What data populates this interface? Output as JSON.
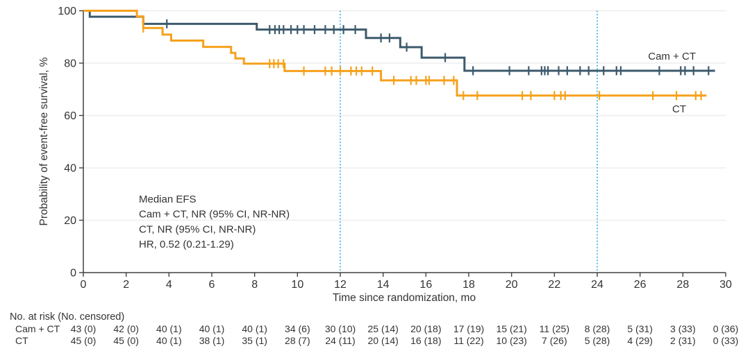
{
  "colors": {
    "cam_ct": "#3c5a6c",
    "ct": "#f5a11c",
    "reference_line": "#4ab7e6",
    "gridline": "#ebebeb",
    "axis": "#404040",
    "text": "#333333"
  },
  "chart_data": {
    "type": "line",
    "subtype": "kaplan-meier-step",
    "title": "",
    "xlabel": "Time since randomization, mo",
    "ylabel": "Probability of event-free survival, %",
    "xlim": [
      0,
      30
    ],
    "ylim": [
      0,
      100
    ],
    "xticks": [
      0,
      2,
      4,
      6,
      8,
      10,
      12,
      14,
      16,
      18,
      20,
      22,
      24,
      26,
      28,
      30
    ],
    "yticks": [
      0,
      20,
      40,
      60,
      80,
      100
    ],
    "grid": "horizontal",
    "legend_position": "inline-right",
    "reference_lines_x": [
      12,
      24
    ],
    "series": [
      {
        "name": "Cam + CT",
        "color": "#3c5a6c",
        "steps": [
          [
            0,
            100
          ],
          [
            0.3,
            97.7
          ],
          [
            2.8,
            95.0
          ],
          [
            8.1,
            92.8
          ],
          [
            13.2,
            89.6
          ],
          [
            14.8,
            86.1
          ],
          [
            15.8,
            82.1
          ],
          [
            17.8,
            77.1
          ]
        ],
        "end_x": 29.5,
        "censor_marks": [
          [
            3.9,
            95.0
          ],
          [
            8.7,
            92.8
          ],
          [
            8.95,
            92.8
          ],
          [
            9.15,
            92.8
          ],
          [
            9.35,
            92.8
          ],
          [
            9.7,
            92.8
          ],
          [
            10.0,
            92.8
          ],
          [
            10.3,
            92.8
          ],
          [
            10.8,
            92.8
          ],
          [
            11.3,
            92.8
          ],
          [
            11.7,
            92.8
          ],
          [
            12.15,
            92.8
          ],
          [
            12.7,
            92.8
          ],
          [
            13.9,
            89.6
          ],
          [
            14.3,
            89.6
          ],
          [
            15.1,
            86.1
          ],
          [
            16.9,
            82.1
          ],
          [
            18.2,
            77.1
          ],
          [
            19.9,
            77.1
          ],
          [
            20.8,
            77.1
          ],
          [
            21.4,
            77.1
          ],
          [
            21.55,
            77.1
          ],
          [
            21.7,
            77.1
          ],
          [
            22.2,
            77.1
          ],
          [
            22.6,
            77.1
          ],
          [
            23.2,
            77.1
          ],
          [
            23.6,
            77.1
          ],
          [
            24.3,
            77.1
          ],
          [
            24.9,
            77.1
          ],
          [
            25.1,
            77.1
          ],
          [
            26.9,
            77.1
          ],
          [
            27.9,
            77.1
          ],
          [
            28.1,
            77.1
          ],
          [
            28.5,
            77.1
          ],
          [
            29.2,
            77.1
          ]
        ]
      },
      {
        "name": "CT",
        "color": "#f5a11c",
        "steps": [
          [
            0,
            100
          ],
          [
            2.5,
            97.8
          ],
          [
            2.8,
            93.4
          ],
          [
            3.7,
            90.9
          ],
          [
            4.1,
            88.6
          ],
          [
            5.6,
            86.2
          ],
          [
            6.9,
            83.9
          ],
          [
            7.1,
            81.8
          ],
          [
            7.5,
            79.8
          ],
          [
            9.4,
            77.0
          ],
          [
            13.9,
            73.4
          ],
          [
            17.45,
            67.6
          ]
        ],
        "end_x": 29.1,
        "censor_marks": [
          [
            2.8,
            93.4
          ],
          [
            8.7,
            79.8
          ],
          [
            8.9,
            79.8
          ],
          [
            9.1,
            79.8
          ],
          [
            9.35,
            79.8
          ],
          [
            10.3,
            77.0
          ],
          [
            11.3,
            77.0
          ],
          [
            11.6,
            77.0
          ],
          [
            12.0,
            77.0
          ],
          [
            12.5,
            77.0
          ],
          [
            12.75,
            77.0
          ],
          [
            13.0,
            77.0
          ],
          [
            13.5,
            77.0
          ],
          [
            14.5,
            73.4
          ],
          [
            15.3,
            73.4
          ],
          [
            15.55,
            73.4
          ],
          [
            16.0,
            73.4
          ],
          [
            16.15,
            73.4
          ],
          [
            16.85,
            73.4
          ],
          [
            17.3,
            73.4
          ],
          [
            17.75,
            67.6
          ],
          [
            18.4,
            67.6
          ],
          [
            20.5,
            67.6
          ],
          [
            20.9,
            67.6
          ],
          [
            22.0,
            67.6
          ],
          [
            22.3,
            67.6
          ],
          [
            22.5,
            67.6
          ],
          [
            24.1,
            67.6
          ],
          [
            26.6,
            67.6
          ],
          [
            27.7,
            67.6
          ],
          [
            28.6,
            67.6
          ],
          [
            28.85,
            67.6
          ]
        ]
      }
    ]
  },
  "curve_labels": {
    "cam_ct": "Cam + CT",
    "ct": "CT"
  },
  "annotation": {
    "lines": [
      "Median EFS",
      "Cam + CT, NR (95% CI, NR-NR)",
      "CT, NR (95% CI, NR-NR)",
      "HR, 0.52 (0.21-1.29)"
    ]
  },
  "risk_table": {
    "header": "No. at risk (No. censored)",
    "time_points": [
      0,
      2,
      4,
      6,
      8,
      10,
      12,
      14,
      16,
      18,
      20,
      22,
      24,
      26,
      28,
      30
    ],
    "rows": [
      {
        "label": "Cam + CT",
        "values": [
          "43 (0)",
          "42 (0)",
          "40 (1)",
          "40 (1)",
          "40 (1)",
          "34 (6)",
          "30 (10)",
          "25 (14)",
          "20 (18)",
          "17 (19)",
          "15 (21)",
          "11 (25)",
          "8 (28)",
          "5 (31)",
          "3 (33)",
          "0 (36)"
        ]
      },
      {
        "label": "CT",
        "values": [
          "45 (0)",
          "45 (0)",
          "40 (1)",
          "38 (1)",
          "35 (1)",
          "28 (7)",
          "24 (11)",
          "20 (14)",
          "16 (18)",
          "11 (22)",
          "10 (23)",
          "7 (26)",
          "5 (28)",
          "4 (29)",
          "2 (31)",
          "0 (33)"
        ]
      }
    ]
  }
}
